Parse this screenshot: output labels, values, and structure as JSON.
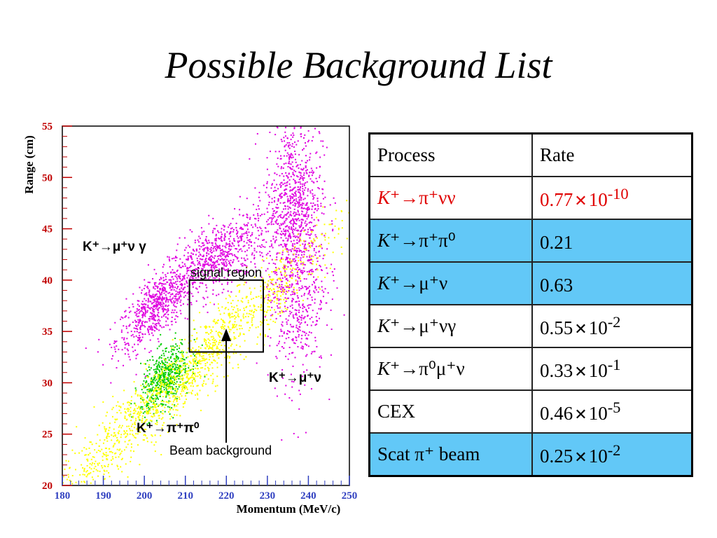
{
  "title": "Possible Background List",
  "chart_data": {
    "type": "scatter",
    "xlabel": "Momentum (MeV/c)",
    "ylabel": "Range (cm)",
    "xlim": [
      180,
      250
    ],
    "ylim": [
      20,
      55
    ],
    "xticks": [
      180,
      190,
      200,
      210,
      220,
      230,
      240,
      250
    ],
    "yticks": [
      20,
      25,
      30,
      35,
      40,
      45,
      50,
      55
    ],
    "series_colors": {
      "magenta": "#e000e0",
      "yellow": "#ffff00",
      "green": "#00cc00"
    },
    "clusters": [
      {
        "color": "magenta",
        "center": [
          203,
          37.5
        ],
        "spread": [
          5,
          2.2
        ],
        "corr": 0.75
      },
      {
        "color": "magenta",
        "center": [
          218,
          42.5
        ],
        "spread": [
          6,
          2
        ],
        "corr": 0.6
      },
      {
        "color": "magenta",
        "center": [
          236,
          48
        ],
        "spread": [
          3.5,
          4
        ],
        "corr": 0.1
      },
      {
        "color": "magenta",
        "center": [
          237,
          40
        ],
        "spread": [
          3.5,
          5
        ],
        "corr": 0.1
      },
      {
        "color": "green",
        "center": [
          205,
          30.5
        ],
        "spread": [
          3,
          1.6
        ],
        "corr": 0.5
      },
      {
        "color": "yellow",
        "center": [
          210,
          31
        ],
        "spread": [
          18,
          7
        ],
        "corr": 0.97
      }
    ],
    "signal_box": {
      "x": [
        211,
        229
      ],
      "y": [
        33,
        40
      ]
    },
    "annotations": {
      "kmunugamma": "K⁺→μ⁺ν γ",
      "signal": "signal region",
      "kmunu": "K⁺→μ⁺ν",
      "kpipi0": "K⁺→π⁺π⁰",
      "beam": "Beam background"
    }
  },
  "table": {
    "headers": [
      "Process",
      "Rate"
    ],
    "rows": [
      {
        "k": "K",
        "process": "⁺→π⁺νν",
        "rate": "0.77",
        "times": "✕",
        "exp": "10",
        "sup": "-10",
        "style": "red"
      },
      {
        "k": "K",
        "process": "⁺→π⁺π⁰",
        "rate": "0.21",
        "times": "",
        "exp": "",
        "sup": "",
        "style": "blue"
      },
      {
        "k": "K",
        "process": "⁺→μ⁺ν",
        "rate": "0.63",
        "times": "",
        "exp": "",
        "sup": "",
        "style": "blue"
      },
      {
        "k": "K",
        "process": "⁺→μ⁺νγ",
        "rate": "0.55",
        "times": "✕",
        "exp": "10",
        "sup": "-2",
        "style": "white"
      },
      {
        "k": "K",
        "process": "⁺→π⁰μ⁺ν",
        "rate": "0.33",
        "times": "✕",
        "exp": "10",
        "sup": "-1",
        "style": "white"
      },
      {
        "k": "",
        "process": "CEX",
        "rate": "0.46",
        "times": "✕",
        "exp": "10",
        "sup": "-5",
        "style": "white"
      },
      {
        "k": "",
        "process": "Scat π⁺ beam",
        "rate": "0.25",
        "times": "✕",
        "exp": "10",
        "sup": "-2",
        "style": "blue"
      }
    ]
  }
}
